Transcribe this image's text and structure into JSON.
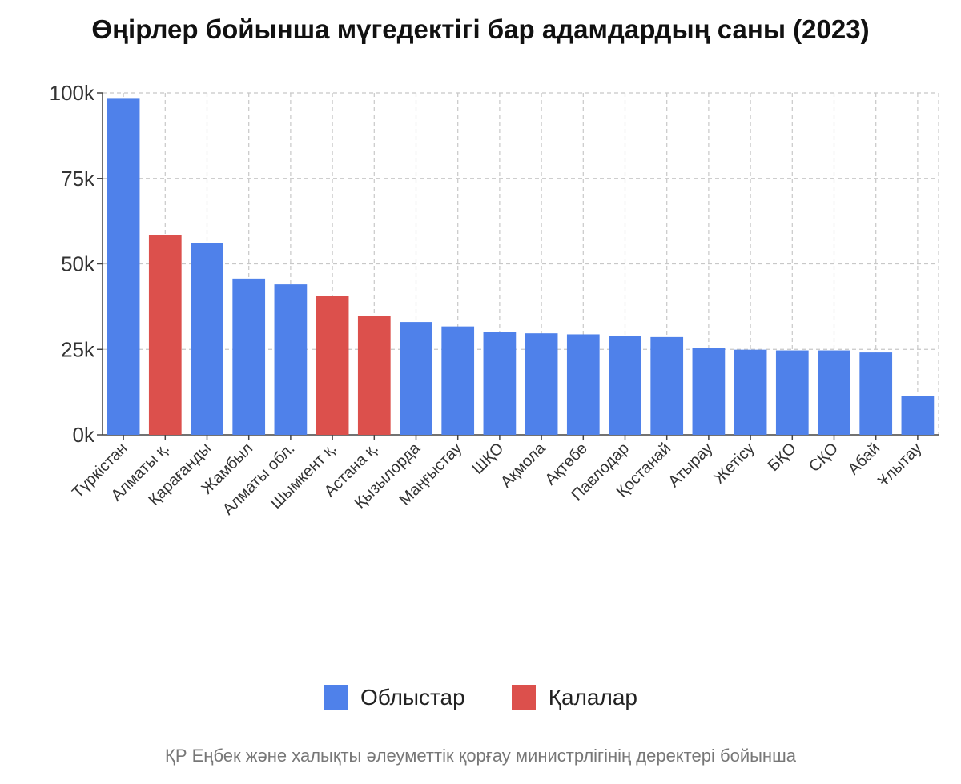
{
  "chart_data": {
    "type": "bar",
    "title": "Өңірлер бойынша мүгедектігі бар адамдардың саны (2023)",
    "xlabel": "",
    "ylabel": "",
    "ylim": [
      0,
      100000
    ],
    "yticks": [
      {
        "value": 0,
        "label": "0k"
      },
      {
        "value": 25000,
        "label": "25k"
      },
      {
        "value": 50000,
        "label": "50k"
      },
      {
        "value": 75000,
        "label": "75k"
      },
      {
        "value": 100000,
        "label": "100k"
      }
    ],
    "grid": true,
    "legend_position": "bottom",
    "categories": [
      "Түркістан",
      "Алматы қ.",
      "Қарағанды",
      "Жамбыл",
      "Алматы обл.",
      "Шымкент қ.",
      "Астана қ.",
      "Қызылорда",
      "Маңғыстау",
      "ШҚО",
      "Ақмола",
      "Ақтөбе",
      "Павлодар",
      "Қостанай",
      "Атырау",
      "Жетісу",
      "БҚО",
      "СҚО",
      "Абай",
      "Ұлытау"
    ],
    "values": [
      98500,
      58500,
      56000,
      45700,
      44000,
      40700,
      34700,
      33000,
      31700,
      30000,
      29700,
      29400,
      28900,
      28600,
      25400,
      24900,
      24700,
      24700,
      24100,
      11300
    ],
    "groups": [
      "region",
      "city",
      "region",
      "region",
      "region",
      "city",
      "city",
      "region",
      "region",
      "region",
      "region",
      "region",
      "region",
      "region",
      "region",
      "region",
      "region",
      "region",
      "region",
      "region"
    ],
    "series": [
      {
        "key": "region",
        "name": "Облыстар",
        "color": "#4f81ea"
      },
      {
        "key": "city",
        "name": "Қалалар",
        "color": "#dc504c"
      }
    ]
  },
  "legend": {
    "items": [
      {
        "label": "Облыстар",
        "color": "#4f81ea"
      },
      {
        "label": "Қалалар",
        "color": "#dc504c"
      }
    ]
  },
  "source": "ҚР Еңбек және халықты әлеуметтік қорғау министрлігінің деректері бойынша"
}
